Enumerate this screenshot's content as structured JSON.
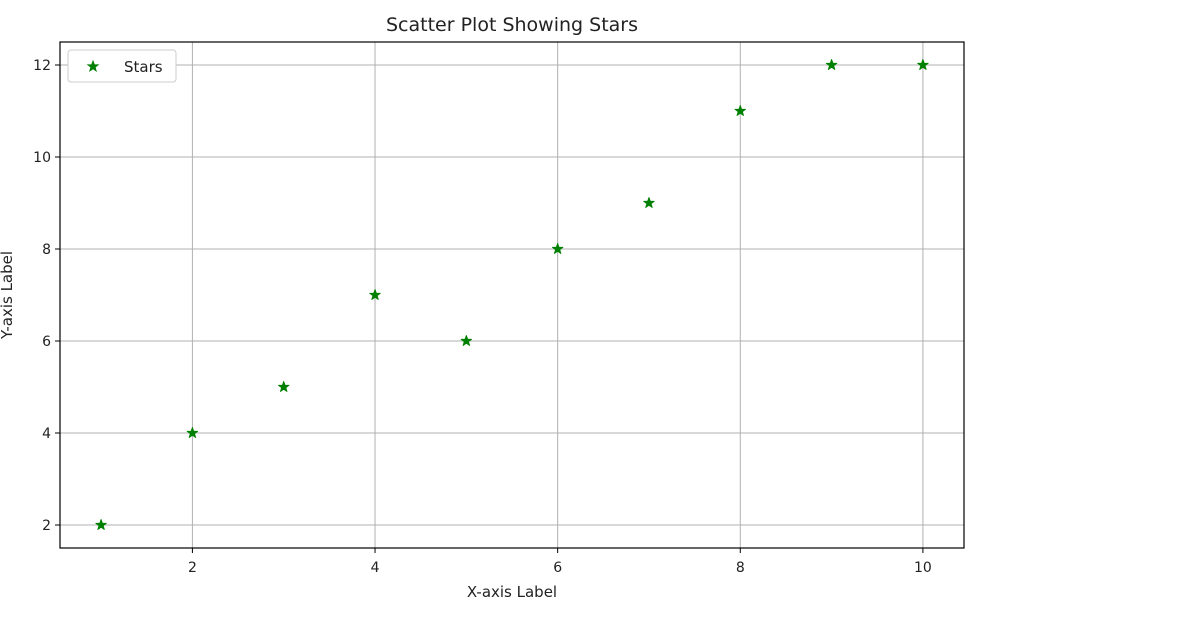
{
  "chart_data": {
    "type": "scatter",
    "title": "Scatter Plot Showing Stars",
    "xlabel": "X-axis Label",
    "ylabel": "Y-axis Label",
    "xlim": [
      0.55,
      10.45
    ],
    "ylim": [
      1.5,
      12.5
    ],
    "xticks": [
      2,
      4,
      6,
      8,
      10
    ],
    "yticks": [
      2,
      4,
      6,
      8,
      10,
      12
    ],
    "xtick_labels": [
      "2",
      "4",
      "6",
      "8",
      "10"
    ],
    "ytick_labels": [
      "2",
      "4",
      "6",
      "8",
      "10",
      "12"
    ],
    "grid": true,
    "legend_position": "top-left",
    "marker": "star",
    "series": [
      {
        "name": "Stars",
        "color": "#008000",
        "x": [
          1,
          2,
          3,
          4,
          5,
          6,
          7,
          8,
          9,
          10
        ],
        "y": [
          2,
          4,
          5,
          7,
          6,
          8,
          9,
          11,
          12,
          12
        ]
      }
    ]
  }
}
